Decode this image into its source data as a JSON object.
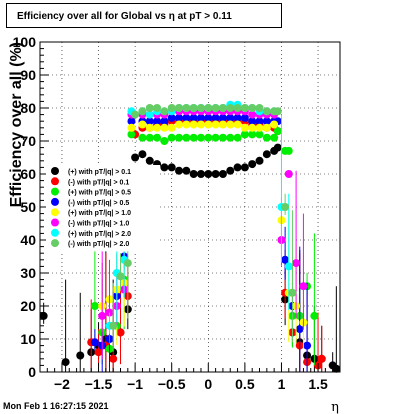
{
  "chart_data": {
    "type": "scatter",
    "title": "Efficiency over all for Global vs   η at pT > 0.11",
    "xlabel": "η",
    "ylabel": "Efficiency over all (%)",
    "xlim": [
      -2.3,
      1.8
    ],
    "ylim": [
      0,
      100
    ],
    "x_ticks": [
      "−2",
      "−1.5",
      "−1",
      "−0.5",
      "0",
      "0.5",
      "1",
      "1.5"
    ],
    "x_tick_values": [
      -2,
      -1.5,
      -1,
      -0.5,
      0,
      0.5,
      1,
      1.5
    ],
    "y_ticks": [
      "0",
      "10",
      "20",
      "30",
      "40",
      "50",
      "60",
      "70",
      "80",
      "90",
      "100"
    ],
    "y_tick_values": [
      0,
      10,
      20,
      30,
      40,
      50,
      60,
      70,
      80,
      90,
      100
    ],
    "grid": true,
    "legend_position": "middle-left",
    "timestamp": "Mon Feb  1 16:27:15 2021",
    "series": [
      {
        "name": "(+) with pT/|q| > 0.1",
        "color": "#000000",
        "points": [
          [
            -2.25,
            17
          ],
          [
            -1.95,
            3
          ],
          [
            -1.75,
            5
          ],
          [
            -1.6,
            6
          ],
          [
            -1.5,
            8
          ],
          [
            -1.4,
            10
          ],
          [
            -1.3,
            6
          ],
          [
            -1.2,
            12
          ],
          [
            -1.1,
            19
          ],
          [
            -1.0,
            65
          ],
          [
            -0.9,
            66
          ],
          [
            -0.8,
            64
          ],
          [
            -0.7,
            63
          ],
          [
            -0.6,
            62
          ],
          [
            -0.5,
            62
          ],
          [
            -0.4,
            61
          ],
          [
            -0.3,
            61
          ],
          [
            -0.2,
            60
          ],
          [
            -0.1,
            60
          ],
          [
            0.0,
            60
          ],
          [
            0.1,
            60
          ],
          [
            0.2,
            60
          ],
          [
            0.3,
            61
          ],
          [
            0.4,
            62
          ],
          [
            0.5,
            62
          ],
          [
            0.6,
            63
          ],
          [
            0.7,
            64
          ],
          [
            0.8,
            66
          ],
          [
            0.9,
            67
          ],
          [
            0.95,
            68
          ],
          [
            1.05,
            22
          ],
          [
            1.15,
            12
          ],
          [
            1.25,
            9
          ],
          [
            1.35,
            5
          ],
          [
            1.45,
            4
          ],
          [
            1.55,
            4
          ],
          [
            1.7,
            2
          ],
          [
            1.75,
            1
          ]
        ]
      },
      {
        "name": "(-) with pT/|q| > 0.1",
        "color": "#ff0000",
        "points": [
          [
            -1.6,
            9
          ],
          [
            -1.5,
            6
          ],
          [
            -1.4,
            8
          ],
          [
            -1.3,
            4
          ],
          [
            -1.2,
            12
          ],
          [
            -1.1,
            23
          ],
          [
            -1.0,
            72
          ],
          [
            -0.9,
            74
          ],
          [
            -0.8,
            74
          ],
          [
            -0.7,
            75
          ],
          [
            -0.6,
            75
          ],
          [
            -0.5,
            76
          ],
          [
            -0.4,
            76
          ],
          [
            -0.3,
            76
          ],
          [
            -0.2,
            76
          ],
          [
            -0.1,
            76
          ],
          [
            0.0,
            76
          ],
          [
            0.1,
            76
          ],
          [
            0.2,
            76
          ],
          [
            0.3,
            76
          ],
          [
            0.4,
            76
          ],
          [
            0.5,
            76
          ],
          [
            0.6,
            75
          ],
          [
            0.7,
            75
          ],
          [
            0.8,
            74
          ],
          [
            0.9,
            74
          ],
          [
            0.95,
            73
          ],
          [
            1.05,
            24
          ],
          [
            1.15,
            12
          ],
          [
            1.25,
            8
          ],
          [
            1.35,
            3
          ],
          [
            1.5,
            2
          ],
          [
            1.55,
            4
          ]
        ]
      },
      {
        "name": "(+) with pT/|q| > 0.5",
        "color": "#00ee00",
        "points": [
          [
            -1.55,
            20
          ],
          [
            -1.45,
            12
          ],
          [
            -1.35,
            7
          ],
          [
            -1.25,
            14
          ],
          [
            -1.15,
            28
          ],
          [
            -1.05,
            72
          ],
          [
            -0.9,
            71
          ],
          [
            -0.8,
            71
          ],
          [
            -0.7,
            71
          ],
          [
            -0.6,
            70
          ],
          [
            -0.5,
            71
          ],
          [
            -0.4,
            71
          ],
          [
            -0.3,
            71
          ],
          [
            -0.2,
            71
          ],
          [
            -0.1,
            71
          ],
          [
            0.0,
            71
          ],
          [
            0.1,
            71
          ],
          [
            0.2,
            71
          ],
          [
            0.3,
            71
          ],
          [
            0.4,
            71
          ],
          [
            0.5,
            72
          ],
          [
            0.6,
            72
          ],
          [
            0.7,
            72
          ],
          [
            0.8,
            71
          ],
          [
            0.9,
            71
          ],
          [
            0.95,
            73
          ],
          [
            1.05,
            67
          ],
          [
            1.1,
            67
          ],
          [
            1.15,
            17
          ],
          [
            1.25,
            17
          ],
          [
            1.35,
            26
          ],
          [
            1.45,
            17
          ]
        ]
      },
      {
        "name": "(-) with pT/|q| > 0.5",
        "color": "#0000ff",
        "points": [
          [
            -1.55,
            9
          ],
          [
            -1.45,
            8
          ],
          [
            -1.35,
            10
          ],
          [
            -1.25,
            23
          ],
          [
            -1.15,
            35
          ],
          [
            -1.05,
            76
          ],
          [
            -0.9,
            76
          ],
          [
            -0.8,
            76
          ],
          [
            -0.7,
            76
          ],
          [
            -0.6,
            76
          ],
          [
            -0.5,
            77
          ],
          [
            -0.4,
            77
          ],
          [
            -0.3,
            77
          ],
          [
            -0.2,
            77
          ],
          [
            -0.1,
            77
          ],
          [
            0.0,
            77
          ],
          [
            0.1,
            77
          ],
          [
            0.2,
            77
          ],
          [
            0.3,
            77
          ],
          [
            0.4,
            77
          ],
          [
            0.5,
            77
          ],
          [
            0.6,
            76
          ],
          [
            0.7,
            76
          ],
          [
            0.8,
            76
          ],
          [
            0.9,
            76
          ],
          [
            0.95,
            76
          ],
          [
            1.05,
            34
          ],
          [
            1.15,
            20
          ],
          [
            1.25,
            13
          ],
          [
            1.35,
            8
          ]
        ]
      },
      {
        "name": "(+) with pT/|q| > 1.0",
        "color": "#ffff00",
        "points": [
          [
            -1.45,
            20
          ],
          [
            -1.35,
            22
          ],
          [
            -1.25,
            25
          ],
          [
            -1.15,
            27
          ],
          [
            -1.05,
            74
          ],
          [
            -0.9,
            75
          ],
          [
            -0.8,
            74
          ],
          [
            -0.7,
            74
          ],
          [
            -0.6,
            74
          ],
          [
            -0.5,
            74
          ],
          [
            -0.4,
            75
          ],
          [
            -0.3,
            75
          ],
          [
            -0.2,
            75
          ],
          [
            -0.1,
            75
          ],
          [
            0.0,
            75
          ],
          [
            0.1,
            75
          ],
          [
            0.2,
            75
          ],
          [
            0.3,
            75
          ],
          [
            0.4,
            75
          ],
          [
            0.5,
            74
          ],
          [
            0.6,
            74
          ],
          [
            0.7,
            74
          ],
          [
            0.8,
            74
          ],
          [
            0.9,
            75
          ],
          [
            1.0,
            46
          ],
          [
            1.1,
            24
          ],
          [
            1.2,
            20
          ],
          [
            1.3,
            15
          ]
        ]
      },
      {
        "name": "(-) with pT/|q| > 1.0",
        "color": "#ff00ff",
        "points": [
          [
            -1.45,
            17
          ],
          [
            -1.35,
            18
          ],
          [
            -1.25,
            20
          ],
          [
            -1.15,
            25
          ],
          [
            -1.05,
            78
          ],
          [
            -0.9,
            78
          ],
          [
            -0.8,
            78
          ],
          [
            -0.7,
            78
          ],
          [
            -0.6,
            78
          ],
          [
            -0.5,
            79
          ],
          [
            -0.4,
            79
          ],
          [
            -0.3,
            79
          ],
          [
            -0.2,
            79
          ],
          [
            -0.1,
            79
          ],
          [
            0.0,
            79
          ],
          [
            0.1,
            79
          ],
          [
            0.2,
            79
          ],
          [
            0.3,
            79
          ],
          [
            0.4,
            79
          ],
          [
            0.5,
            79
          ],
          [
            0.6,
            78
          ],
          [
            0.7,
            78
          ],
          [
            0.8,
            78
          ],
          [
            0.9,
            78
          ],
          [
            1.0,
            40
          ],
          [
            1.1,
            60
          ],
          [
            1.2,
            33
          ],
          [
            1.3,
            26
          ]
        ]
      },
      {
        "name": "(+) with pT/|q| > 2.0",
        "color": "#00ffff",
        "points": [
          [
            -1.35,
            14
          ],
          [
            -1.25,
            30
          ],
          [
            -1.15,
            34
          ],
          [
            -1.05,
            79
          ],
          [
            -0.9,
            79
          ],
          [
            -0.8,
            78
          ],
          [
            -0.7,
            79
          ],
          [
            -0.6,
            79
          ],
          [
            -0.5,
            79
          ],
          [
            -0.4,
            80
          ],
          [
            -0.3,
            80
          ],
          [
            -0.2,
            80
          ],
          [
            -0.1,
            80
          ],
          [
            0.0,
            80
          ],
          [
            0.1,
            80
          ],
          [
            0.2,
            80
          ],
          [
            0.3,
            81
          ],
          [
            0.4,
            81
          ],
          [
            0.5,
            80
          ],
          [
            0.6,
            80
          ],
          [
            0.7,
            79
          ],
          [
            0.8,
            79
          ],
          [
            0.9,
            79
          ],
          [
            1.0,
            50
          ],
          [
            1.1,
            32
          ]
        ]
      },
      {
        "name": "(-) with pT/|q| > 2.0",
        "color": "#66cc66",
        "points": [
          [
            -1.3,
            14
          ],
          [
            -1.2,
            29
          ],
          [
            -1.1,
            33
          ],
          [
            -1.0,
            78
          ],
          [
            -0.9,
            79
          ],
          [
            -0.8,
            80
          ],
          [
            -0.7,
            80
          ],
          [
            -0.6,
            79
          ],
          [
            -0.5,
            80
          ],
          [
            -0.4,
            80
          ],
          [
            -0.3,
            80
          ],
          [
            -0.2,
            80
          ],
          [
            -0.1,
            80
          ],
          [
            0.0,
            80
          ],
          [
            0.1,
            80
          ],
          [
            0.2,
            80
          ],
          [
            0.3,
            80
          ],
          [
            0.4,
            80
          ],
          [
            0.5,
            80
          ],
          [
            0.6,
            80
          ],
          [
            0.7,
            80
          ],
          [
            0.8,
            79
          ],
          [
            0.9,
            79
          ],
          [
            0.95,
            79
          ],
          [
            1.05,
            50
          ],
          [
            1.15,
            24
          ]
        ]
      }
    ]
  }
}
